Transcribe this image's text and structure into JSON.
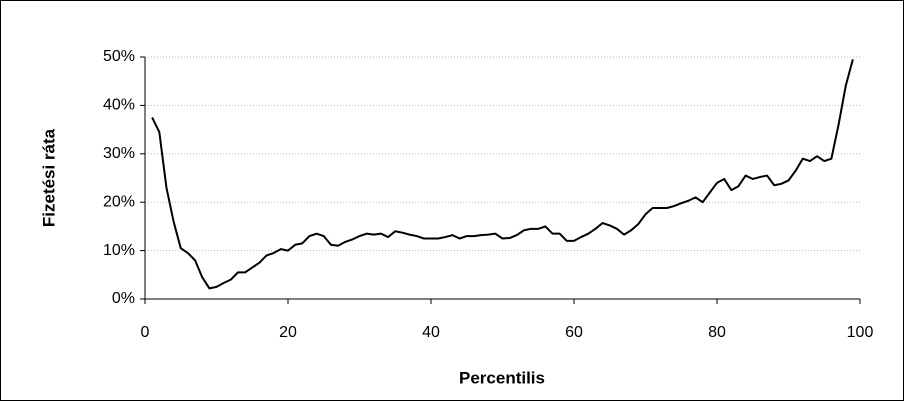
{
  "chart_data": {
    "type": "line",
    "xlabel": "Percentilis",
    "ylabel": "Fizetési ráta",
    "x": [
      1,
      2,
      3,
      4,
      5,
      6,
      7,
      8,
      9,
      10,
      11,
      12,
      13,
      14,
      15,
      16,
      17,
      18,
      19,
      20,
      21,
      22,
      23,
      24,
      25,
      26,
      27,
      28,
      29,
      30,
      31,
      32,
      33,
      34,
      35,
      36,
      37,
      38,
      39,
      40,
      41,
      42,
      43,
      44,
      45,
      46,
      47,
      48,
      49,
      50,
      51,
      52,
      53,
      54,
      55,
      56,
      57,
      58,
      59,
      60,
      61,
      62,
      63,
      64,
      65,
      66,
      67,
      68,
      69,
      70,
      71,
      72,
      73,
      74,
      75,
      76,
      77,
      78,
      79,
      80,
      81,
      82,
      83,
      84,
      85,
      86,
      87,
      88,
      89,
      90,
      91,
      92,
      93,
      94,
      95,
      96,
      97,
      98,
      99
    ],
    "series": [
      {
        "color": "#000000",
        "values": [
          37.5,
          34.5,
          23,
          16,
          10.5,
          9.5,
          8,
          4.5,
          2.2,
          2.5,
          3.3,
          4,
          5.5,
          5.5,
          6.5,
          7.5,
          9,
          9.5,
          10.3,
          10,
          11.2,
          11.5,
          13,
          13.5,
          13,
          11.2,
          11,
          11.8,
          12.3,
          13,
          13.5,
          13.3,
          13.5,
          12.8,
          14,
          13.7,
          13.3,
          13,
          12.5,
          12.5,
          12.5,
          12.8,
          13.2,
          12.5,
          13,
          13,
          13.2,
          13.3,
          13.5,
          12.5,
          12.6,
          13.2,
          14.2,
          14.5,
          14.5,
          15,
          13.5,
          13.5,
          12,
          12,
          12.8,
          13.5,
          14.5,
          15.7,
          15.2,
          14.5,
          13.3,
          14.2,
          15.5,
          17.5,
          18.8,
          18.8,
          18.8,
          19.2,
          19.8,
          20.3,
          21,
          20,
          22,
          24,
          24.8,
          22.5,
          23.3,
          25.5,
          24.8,
          25.2,
          25.5,
          23.5,
          23.8,
          24.5,
          26.5,
          29,
          28.5,
          29.5,
          28.5,
          29,
          36,
          44,
          49.5
        ]
      }
    ],
    "xlim": [
      0,
      100
    ],
    "xticks": [
      0,
      20,
      40,
      60,
      80,
      100
    ],
    "ylim": [
      0,
      50
    ],
    "yticks": [
      {
        "value": 0,
        "label": "0%"
      },
      {
        "value": 10,
        "label": "10%"
      },
      {
        "value": 20,
        "label": "20%"
      },
      {
        "value": 30,
        "label": "30%"
      },
      {
        "value": 40,
        "label": "40%"
      },
      {
        "value": 50,
        "label": "50%"
      }
    ],
    "grid": true
  }
}
